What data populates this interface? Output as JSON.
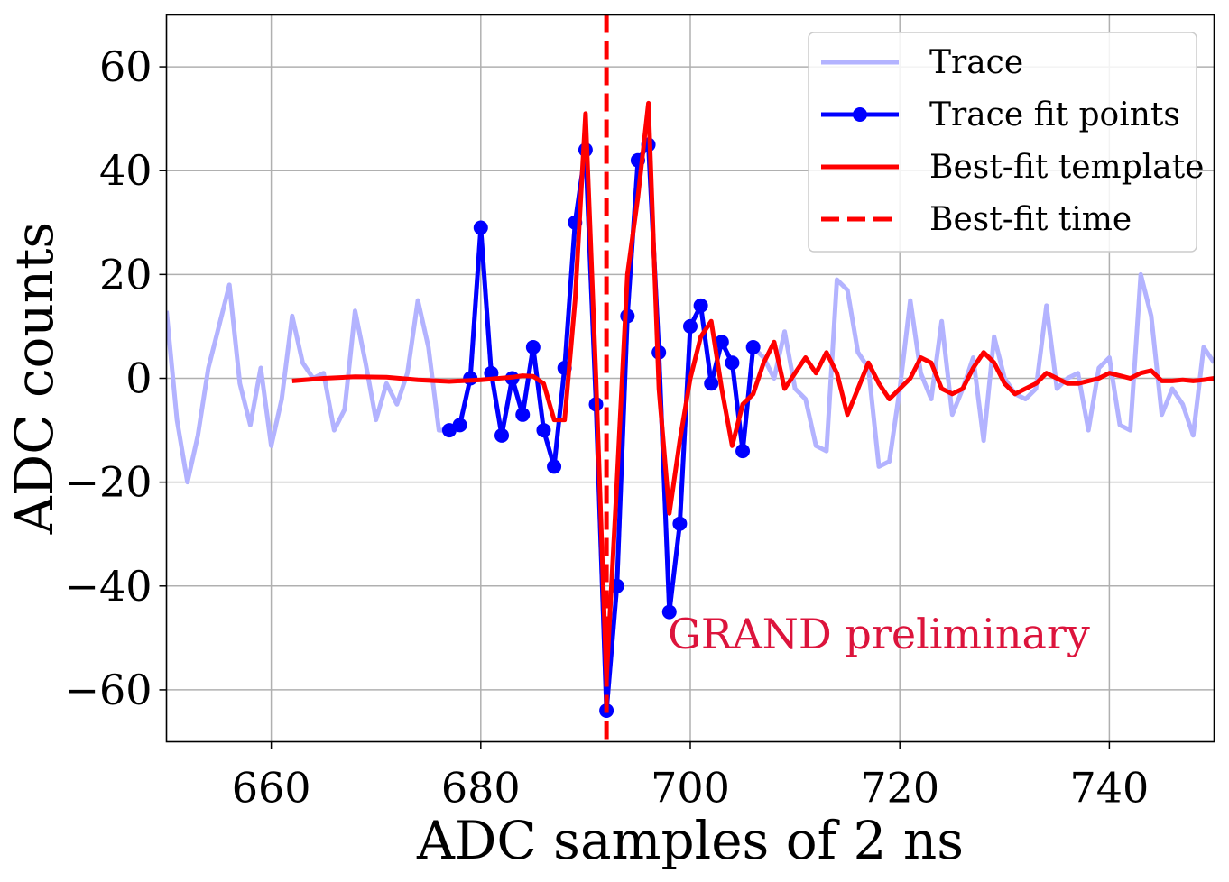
{
  "chart_data": {
    "type": "line",
    "title": "",
    "xlabel": "ADC samples of 2 ns",
    "ylabel": "ADC counts",
    "xlim": [
      650,
      750
    ],
    "ylim": [
      -70,
      70
    ],
    "xticks": [
      660,
      680,
      700,
      720,
      740
    ],
    "yticks": [
      -60,
      -40,
      -20,
      0,
      20,
      40,
      60
    ],
    "xtick_labels": [
      "660",
      "680",
      "700",
      "720",
      "740"
    ],
    "ytick_labels": [
      "−60",
      "−40",
      "−20",
      "0",
      "20",
      "40",
      "60"
    ],
    "grid": true,
    "legend_position": "top-right",
    "annotation": {
      "text": "GRAND preliminary",
      "x": 718,
      "y": -52,
      "color": "#dc143c"
    },
    "colors": {
      "trace": "#b3b3ff",
      "fit_points": "#0000ff",
      "template": "#ff0000",
      "best_time": "#ff0000"
    },
    "series": [
      {
        "name": "Trace",
        "style": "line",
        "x": [
          650,
          651,
          652,
          653,
          654,
          655,
          656,
          657,
          658,
          659,
          660,
          661,
          662,
          663,
          664,
          665,
          666,
          667,
          668,
          669,
          670,
          671,
          672,
          673,
          674,
          675,
          676,
          677,
          678,
          679,
          680,
          681,
          682,
          683,
          684,
          685,
          686,
          687,
          688,
          689,
          690,
          691,
          692,
          693,
          694,
          695,
          696,
          697,
          698,
          699,
          700,
          701,
          702,
          703,
          704,
          705,
          706,
          707,
          708,
          709,
          710,
          711,
          712,
          713,
          714,
          715,
          716,
          717,
          718,
          719,
          720,
          721,
          722,
          723,
          724,
          725,
          726,
          727,
          728,
          729,
          730,
          731,
          732,
          733,
          734,
          735,
          736,
          737,
          738,
          739,
          740,
          741,
          742,
          743,
          744,
          745,
          746,
          747,
          748,
          749,
          750
        ],
        "y": [
          13,
          -8,
          -20,
          -11,
          2,
          10,
          18,
          -1,
          -9,
          2,
          -13,
          -4,
          12,
          3,
          0,
          1,
          -10,
          -6,
          13,
          3,
          -8,
          -1,
          -5,
          1,
          15,
          6,
          -10,
          -10,
          -9,
          0,
          29,
          1,
          -11,
          0,
          -7,
          6,
          -10,
          -17,
          2,
          30,
          44,
          -5,
          -64,
          -40,
          12,
          42,
          45,
          5,
          -45,
          -28,
          10,
          14,
          -1,
          7,
          3,
          -14,
          6,
          4,
          0,
          9,
          -2,
          -4,
          -13,
          -14,
          19,
          17,
          5,
          2,
          -17,
          -16,
          -2,
          15,
          1,
          -4,
          11,
          -7,
          -2,
          4,
          -12,
          8,
          0,
          -3,
          -4,
          -2,
          14,
          -2,
          0,
          1,
          -10,
          2,
          4,
          -9,
          -10,
          20,
          12,
          -7,
          -2,
          -5,
          -11,
          6,
          3
        ]
      },
      {
        "name": "Trace fit points",
        "style": "line+marker",
        "x": [
          677,
          678,
          679,
          680,
          681,
          682,
          683,
          684,
          685,
          686,
          687,
          688,
          689,
          690,
          691,
          692,
          693,
          694,
          695,
          696,
          697,
          698,
          699,
          700,
          701,
          702,
          703,
          704,
          705,
          706
        ],
        "y": [
          -10,
          -9,
          0,
          29,
          1,
          -11,
          0,
          -7,
          6,
          -10,
          -17,
          2,
          30,
          44,
          -5,
          -64,
          -40,
          12,
          42,
          45,
          5,
          -45,
          -28,
          10,
          14,
          -1,
          7,
          3,
          -14,
          6
        ]
      },
      {
        "name": "Best-fit template",
        "style": "line",
        "x": [
          662,
          665,
          668,
          671,
          674,
          677,
          680,
          683,
          684,
          685,
          686,
          687,
          688,
          689,
          690,
          691,
          692,
          693,
          694,
          695,
          696,
          697,
          698,
          699,
          700,
          701,
          702,
          703,
          704,
          705,
          706,
          707,
          708,
          709,
          710,
          711,
          712,
          713,
          714,
          715,
          716,
          717,
          718,
          719,
          720,
          721,
          722,
          723,
          724,
          725,
          726,
          727,
          728,
          729,
          730,
          731,
          732,
          733,
          734,
          735,
          736,
          737,
          738,
          739,
          740,
          741,
          742,
          743,
          744,
          745,
          746,
          747,
          748,
          749,
          750
        ],
        "y": [
          -0.5,
          0,
          0.3,
          0.2,
          -0.3,
          -0.6,
          -0.3,
          0.2,
          0.5,
          0.4,
          -1,
          -8,
          -8,
          15,
          51,
          0,
          -58,
          -20,
          20,
          35,
          53,
          -2,
          -26,
          -12,
          0,
          8,
          11,
          -2,
          -13,
          -5,
          -3,
          3,
          7,
          -2,
          1,
          4,
          1,
          5,
          1,
          -7,
          -2,
          3,
          -1,
          -4,
          -2,
          0,
          4,
          3,
          -2,
          -3,
          -2,
          2,
          5,
          3,
          -1,
          -3,
          -2,
          -1,
          1,
          0,
          -1,
          -1,
          -0.5,
          0,
          1,
          0.5,
          0,
          1,
          1.5,
          -0.5,
          -0.5,
          -0.3,
          -0.5,
          -0.3,
          0
        ]
      },
      {
        "name": "Best-fit time",
        "style": "vline-dashed",
        "x": [
          692
        ]
      }
    ]
  }
}
